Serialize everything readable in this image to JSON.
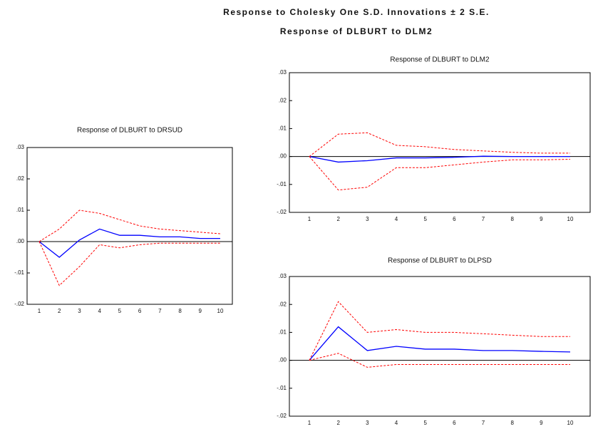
{
  "header": {
    "title": "Response to Cholesky One S.D. Innovations ± 2 S.E.",
    "subtitle": "Response of DLBURT to DLM2"
  },
  "chart_data": [
    {
      "type": "line",
      "title": "Response of DLBURT to DRSUD",
      "categories": [
        "1",
        "2",
        "3",
        "4",
        "5",
        "6",
        "7",
        "8",
        "9",
        "10"
      ],
      "ylim": [
        -0.02,
        0.03
      ],
      "yticks": [
        {
          "value": -0.02,
          "label": "-.02"
        },
        {
          "value": -0.01,
          "label": "-.01"
        },
        {
          "value": 0,
          "label": ".00"
        },
        {
          "value": 0.01,
          "label": ".01"
        },
        {
          "value": 0.02,
          "label": ".02"
        },
        {
          "value": 0.03,
          "label": ".03"
        }
      ],
      "series": [
        {
          "color": "#0000ff",
          "dash": false,
          "values": [
            0,
            -0.005,
            0.0005,
            0.004,
            0.002,
            0.002,
            0.0015,
            0.0015,
            0.001,
            0.001
          ]
        },
        {
          "color": "#ff0000",
          "dash": true,
          "values": [
            0,
            0.004,
            0.01,
            0.009,
            0.007,
            0.005,
            0.004,
            0.0035,
            0.003,
            0.0025
          ]
        },
        {
          "color": "#ff0000",
          "dash": true,
          "values": [
            0,
            -0.014,
            -0.008,
            -0.001,
            -0.002,
            -0.001,
            -0.0005,
            -0.0005,
            -0.0005,
            -0.0005
          ]
        }
      ]
    },
    {
      "type": "line",
      "title": "Response of DLBURT to DLM2",
      "categories": [
        "1",
        "2",
        "3",
        "4",
        "5",
        "6",
        "7",
        "8",
        "9",
        "10"
      ],
      "ylim": [
        -0.02,
        0.03
      ],
      "yticks": [
        {
          "value": -0.02,
          "label": "-.02"
        },
        {
          "value": -0.01,
          "label": "-.01"
        },
        {
          "value": 0,
          "label": ".00"
        },
        {
          "value": 0.01,
          "label": ".01"
        },
        {
          "value": 0.02,
          "label": ".02"
        },
        {
          "value": 0.03,
          "label": ".03"
        }
      ],
      "series": [
        {
          "color": "#0000ff",
          "dash": false,
          "values": [
            0,
            -0.002,
            -0.0015,
            -0.0005,
            -0.0005,
            -0.0003,
            0.0001,
            0,
            0,
            0
          ]
        },
        {
          "color": "#ff0000",
          "dash": true,
          "values": [
            0,
            0.008,
            0.0085,
            0.004,
            0.0035,
            0.0025,
            0.002,
            0.0015,
            0.0012,
            0.0012
          ]
        },
        {
          "color": "#ff0000",
          "dash": true,
          "values": [
            0,
            -0.012,
            -0.011,
            -0.004,
            -0.004,
            -0.003,
            -0.002,
            -0.0012,
            -0.0012,
            -0.001
          ]
        }
      ]
    },
    {
      "type": "line",
      "title": "Response of DLBURT to DLPSD",
      "categories": [
        "1",
        "2",
        "3",
        "4",
        "5",
        "6",
        "7",
        "8",
        "9",
        "10"
      ],
      "ylim": [
        -0.02,
        0.03
      ],
      "yticks": [
        {
          "value": -0.02,
          "label": "-.02"
        },
        {
          "value": -0.01,
          "label": "-.01"
        },
        {
          "value": 0,
          "label": ".00"
        },
        {
          "value": 0.01,
          "label": ".01"
        },
        {
          "value": 0.02,
          "label": ".02"
        },
        {
          "value": 0.03,
          "label": ".03"
        }
      ],
      "series": [
        {
          "color": "#0000ff",
          "dash": false,
          "values": [
            0,
            0.012,
            0.0035,
            0.005,
            0.004,
            0.004,
            0.0035,
            0.0035,
            0.0032,
            0.003
          ]
        },
        {
          "color": "#ff0000",
          "dash": true,
          "values": [
            0,
            0.021,
            0.01,
            0.011,
            0.01,
            0.01,
            0.0095,
            0.009,
            0.0085,
            0.0085
          ]
        },
        {
          "color": "#ff0000",
          "dash": true,
          "values": [
            0,
            0.0025,
            -0.0025,
            -0.0015,
            -0.0015,
            -0.0015,
            -0.0015,
            -0.0015,
            -0.0015,
            -0.0015
          ]
        }
      ]
    }
  ]
}
